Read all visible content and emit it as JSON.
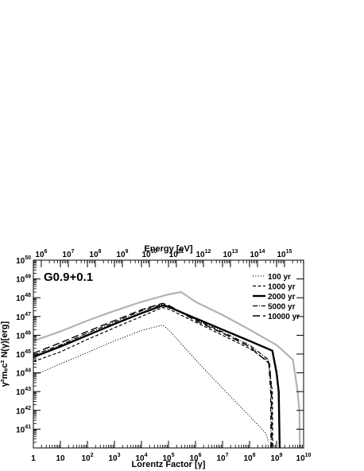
{
  "chart_data": {
    "type": "line",
    "title": "G0.9+0.1",
    "xlabel": "Lorentz Factor [γ]",
    "ylabel": "γ²mₑc² N(γ)[erg]",
    "x2label": "Energy [eV]",
    "x_scale": "log",
    "y_scale": "log",
    "xlim": [
      1,
      10000000000
    ],
    "ylim": [
      1e+40,
      1e+50
    ],
    "x2lim": [
      510000,
      5100000000000000.0
    ],
    "x_ticks": [
      "1",
      "10",
      "10^2",
      "10^3",
      "10^4",
      "10^5",
      "10^6",
      "10^7",
      "10^8",
      "10^9",
      "10^10"
    ],
    "y_ticks": [
      "10^41",
      "10^42",
      "10^43",
      "10^44",
      "10^45",
      "10^46",
      "10^47",
      "10^48",
      "10^49",
      "10^50"
    ],
    "x2_ticks": [
      "10^6",
      "10^7",
      "10^8",
      "10^9",
      "10^10",
      "10^11",
      "10^12",
      "10^13",
      "10^14",
      "10^15"
    ],
    "legend_position": "top-right",
    "series": [
      {
        "name": "100 yr",
        "style": "dotted",
        "color": "#000000",
        "points": [
          [
            1,
            7e+43
          ],
          [
            10,
            3e+44
          ],
          [
            100,
            1.2e+45
          ],
          [
            1000,
            5e+45
          ],
          [
            10000,
            1.8e+46
          ],
          [
            60000,
            3.5e+46
          ],
          [
            100000,
            2e+46
          ],
          [
            1000000,
            5e+44
          ],
          [
            10000000,
            1.5e+43
          ],
          [
            100000000,
            5e+41
          ],
          [
            400000000,
            6e+40
          ],
          [
            500000000,
            2e+40
          ]
        ]
      },
      {
        "name": "1000 yr",
        "style": "dashed",
        "color": "#000000",
        "points": [
          [
            1,
            4e+44
          ],
          [
            10,
            1.3e+45
          ],
          [
            100,
            6e+45
          ],
          [
            1000,
            2.5e+46
          ],
          [
            10000,
            1e+47
          ],
          [
            60000,
            3e+47
          ],
          [
            100000,
            2.5e+47
          ],
          [
            1000000,
            5e+46
          ],
          [
            10000000,
            1e+46
          ],
          [
            100000000,
            2e+45
          ],
          [
            500000000,
            4e+44
          ],
          [
            700000000,
            1e+43
          ],
          [
            720000000,
            1e+40
          ]
        ]
      },
      {
        "name": "2000 yr",
        "style": "solid-thick",
        "color": "#000000",
        "points": [
          [
            1,
            7e+44
          ],
          [
            10,
            2.5e+45
          ],
          [
            100,
            1e+46
          ],
          [
            1000,
            4e+46
          ],
          [
            10000,
            1.5e+47
          ],
          [
            60000,
            3.8e+47
          ],
          [
            100000,
            3.3e+47
          ],
          [
            1000000,
            8e+46
          ],
          [
            10000000,
            2e+46
          ],
          [
            100000000,
            5e+45
          ],
          [
            700000000,
            1.5e+45
          ],
          [
            1000000000,
            1e+44
          ],
          [
            1200000000,
            1e+43
          ],
          [
            1300000000,
            1e+40
          ]
        ]
      },
      {
        "name": "5000 yr",
        "style": "dash-dot",
        "color": "#000000",
        "points": [
          [
            1,
            9e+44
          ],
          [
            10,
            3e+45
          ],
          [
            100,
            1.3e+46
          ],
          [
            1000,
            5e+46
          ],
          [
            10000,
            2e+47
          ],
          [
            60000,
            4.5e+47
          ],
          [
            100000,
            3.5e+47
          ],
          [
            1000000,
            7e+46
          ],
          [
            10000000,
            1.5e+46
          ],
          [
            100000000,
            3e+45
          ],
          [
            500000000,
            5e+44
          ],
          [
            600000000,
            1e+43
          ],
          [
            620000000,
            1e+40
          ]
        ]
      },
      {
        "name": "10000 yr",
        "style": "long-dash",
        "color": "#000000",
        "points": [
          [
            1,
            1.1e+45
          ],
          [
            10,
            4e+45
          ],
          [
            100,
            1.6e+46
          ],
          [
            1000,
            6e+46
          ],
          [
            10000,
            2.3e+47
          ],
          [
            60000,
            5e+47
          ],
          [
            100000,
            4e+47
          ],
          [
            1000000,
            6e+46
          ],
          [
            10000000,
            1.3e+46
          ],
          [
            100000000,
            2.5e+45
          ],
          [
            550000000,
            3e+44
          ],
          [
            650000000,
            1e+43
          ],
          [
            670000000,
            1e+40
          ]
        ]
      },
      {
        "name": "",
        "style": "solid",
        "color": "#a9b5bf",
        "points": [
          [
            1,
            5e+45
          ],
          [
            10,
            1.6e+46
          ],
          [
            100,
            6e+46
          ],
          [
            1000,
            2e+47
          ],
          [
            10000,
            6e+47
          ],
          [
            100000,
            1.5e+48
          ],
          [
            300000,
            2e+48
          ],
          [
            1000000,
            6e+47
          ],
          [
            10000000,
            1.2e+47
          ],
          [
            100000000,
            2e+46
          ],
          [
            1000000000,
            3e+45
          ],
          [
            4000000000,
            5e+44
          ],
          [
            6000000000,
            1e+43
          ],
          [
            7000000000,
            1e+42
          ],
          [
            7300000000,
            1e+40
          ]
        ]
      }
    ]
  }
}
